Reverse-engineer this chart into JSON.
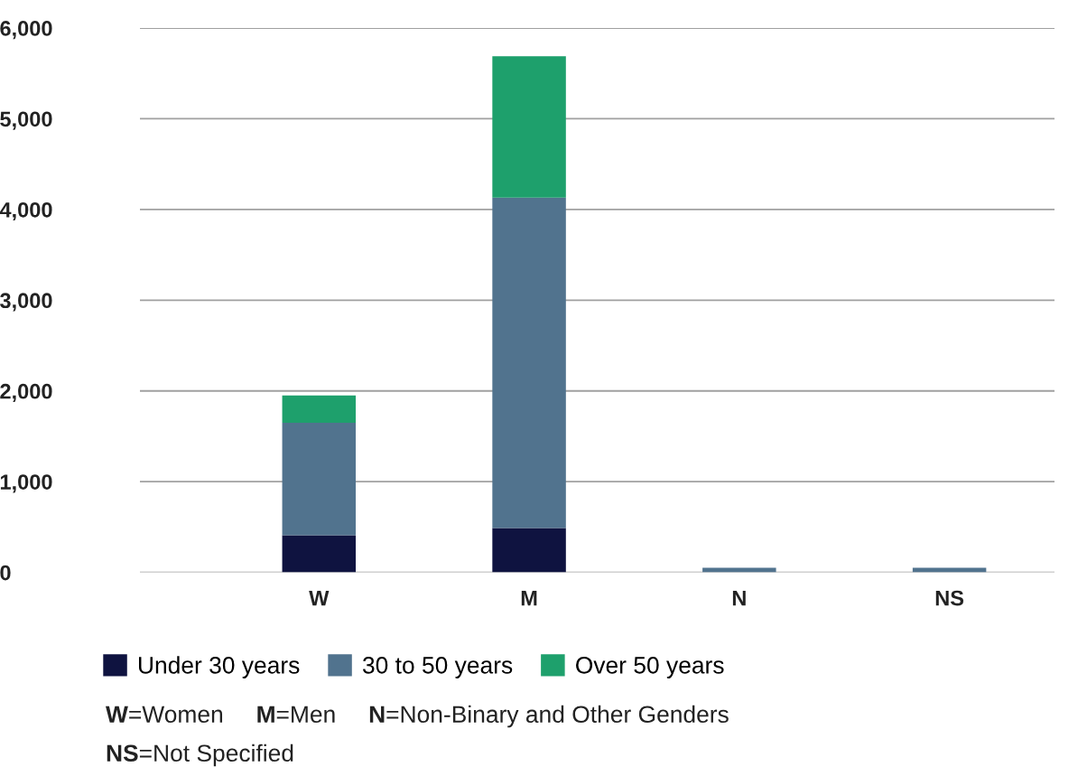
{
  "chart_data": {
    "type": "bar",
    "stacked": true,
    "categories": [
      "W",
      "M",
      "N",
      "NS"
    ],
    "series": [
      {
        "name": "Under 30 years",
        "color": "#0f1340",
        "values": [
          410,
          490,
          0,
          0
        ]
      },
      {
        "name": "30 to 50 years",
        "color": "#51738e",
        "values": [
          1240,
          3640,
          50,
          50
        ]
      },
      {
        "name": "Over 50 years",
        "color": "#1ea06c",
        "values": [
          300,
          1560,
          0,
          0
        ]
      }
    ],
    "ylim": [
      0,
      6000
    ],
    "yticks": [
      {
        "value": 0,
        "label": "0"
      },
      {
        "value": 1000,
        "label": "1,000"
      },
      {
        "value": 2000,
        "label": "2,000"
      },
      {
        "value": 3000,
        "label": "3,000"
      },
      {
        "value": 4000,
        "label": "4,000"
      },
      {
        "value": 5000,
        "label": "5,000"
      },
      {
        "value": 6000,
        "label": "6,000"
      }
    ],
    "grid": "y",
    "legend": "bottom",
    "annotations": [
      "W=Women",
      "M=Men",
      "N=Non-Binary and Other Genders",
      "NS=Not Specified"
    ]
  }
}
